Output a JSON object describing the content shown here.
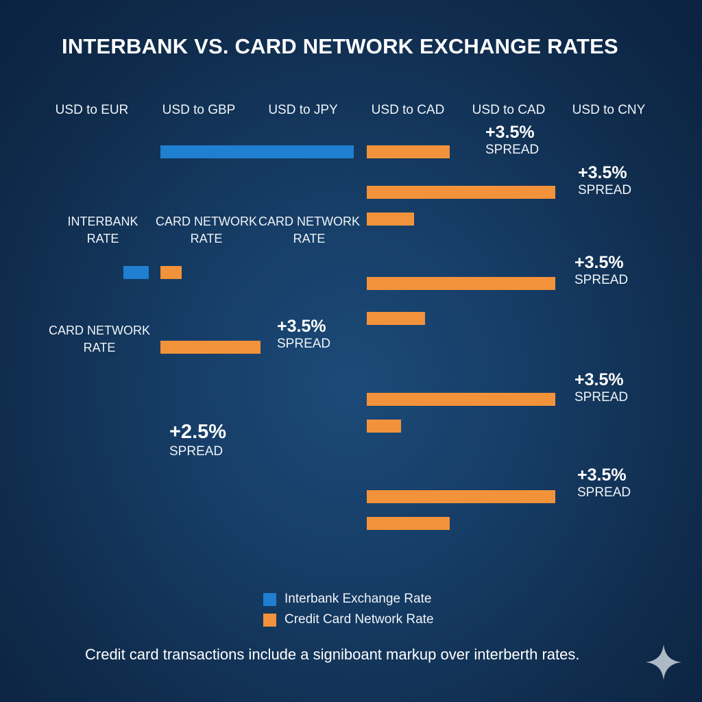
{
  "title": "INTERBANK VS. CARD NETWORK EXCHANGE RATES",
  "column_labels": [
    "USD to EUR",
    "USD to GBP",
    "USD to JPY",
    "USD to CAD",
    "USD to CAD",
    "USD to CNY"
  ],
  "side_labels": {
    "interbank_rate": [
      "INTERBANK",
      "RATE"
    ],
    "card_network_rate_1": [
      "CARD NETWORK",
      "RATE"
    ],
    "card_network_rate_2": [
      "CARD NETWORK",
      "RATE"
    ],
    "card_network_rate_3": [
      "CARD NETWORK",
      "RATE"
    ]
  },
  "spread_labels": [
    {
      "pct": "+3.5%",
      "word": "SPREAD"
    },
    {
      "pct": "+3.5%",
      "word": "SPREAD"
    },
    {
      "pct": "+3.5%",
      "word": "SPREAD"
    },
    {
      "pct": "+3.5%",
      "word": "SPREAD"
    },
    {
      "pct": "+3.5%",
      "word": "SPREAD"
    },
    {
      "pct": "+3.5%",
      "word": "SPREAD"
    },
    {
      "pct": "+2.5%",
      "word": "SPREAD"
    }
  ],
  "legend": {
    "interbank": "Interbank Exchange Rate",
    "card": "Credit Card Network Rate"
  },
  "footer": "Credit card transactions include a signiboant markup over interberth rates.",
  "colors": {
    "interbank": "#1f7fd0",
    "card": "#f2923a",
    "background": "#163d66"
  },
  "chart_data": {
    "type": "bar",
    "orientation": "horizontal",
    "title": "INTERBANK VS. CARD NETWORK EXCHANGE RATES",
    "categories": [
      "USD to EUR",
      "USD to GBP",
      "USD to JPY",
      "USD to CAD",
      "USD to CAD",
      "USD to CNY"
    ],
    "series": [
      {
        "name": "Interbank Exchange Rate",
        "color": "#1f7fd0"
      },
      {
        "name": "Credit Card Network Rate",
        "color": "#f2923a"
      }
    ],
    "bars": [
      {
        "series": "Interbank Exchange Rate",
        "length": 1.0
      },
      {
        "series": "Credit Card Network Rate",
        "length": 0.44
      },
      {
        "series": "Credit Card Network Rate",
        "length": 1.0
      },
      {
        "series": "Credit Card Network Rate",
        "length": 0.25
      },
      {
        "series": "Interbank Exchange Rate",
        "length": 0.13
      },
      {
        "series": "Credit Card Network Rate",
        "length": 0.11
      },
      {
        "series": "Credit Card Network Rate",
        "length": 1.0
      },
      {
        "series": "Credit Card Network Rate",
        "length": 0.31
      },
      {
        "series": "Credit Card Network Rate",
        "length": 0.53
      },
      {
        "series": "Credit Card Network Rate",
        "length": 1.0
      },
      {
        "series": "Credit Card Network Rate",
        "length": 0.18
      },
      {
        "series": "Credit Card Network Rate",
        "length": 1.0
      },
      {
        "series": "Credit Card Network Rate",
        "length": 0.44
      }
    ],
    "annotations": [
      "+3.5% SPREAD",
      "+3.5% SPREAD",
      "+3.5% SPREAD",
      "+3.5% SPREAD",
      "+3.5% SPREAD",
      "+3.5% SPREAD",
      "+2.5% SPREAD"
    ],
    "legend_position": "bottom-center",
    "grid": false
  }
}
